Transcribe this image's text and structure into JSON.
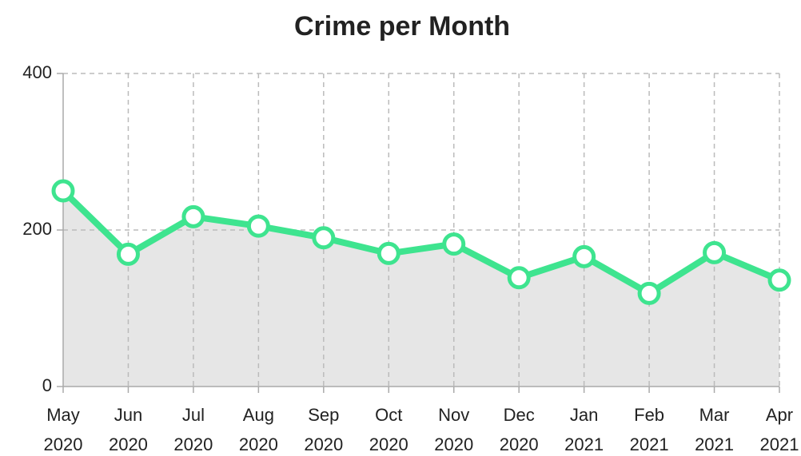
{
  "chart_data": {
    "type": "line",
    "title": "Crime per Month",
    "categories": [
      "May 2020",
      "Jun 2020",
      "Jul 2020",
      "Aug 2020",
      "Sep 2020",
      "Oct 2020",
      "Nov 2020",
      "Dec 2020",
      "Jan 2021",
      "Feb 2021",
      "Mar 2021",
      "Apr 2021"
    ],
    "values": [
      250,
      169,
      217,
      205,
      190,
      170,
      182,
      139,
      166,
      119,
      171,
      136
    ],
    "color": "#3ee48f",
    "fill": "#e6e6e6",
    "ylim": [
      0,
      400
    ],
    "yticks": [
      0,
      200,
      400
    ],
    "grid": true
  }
}
